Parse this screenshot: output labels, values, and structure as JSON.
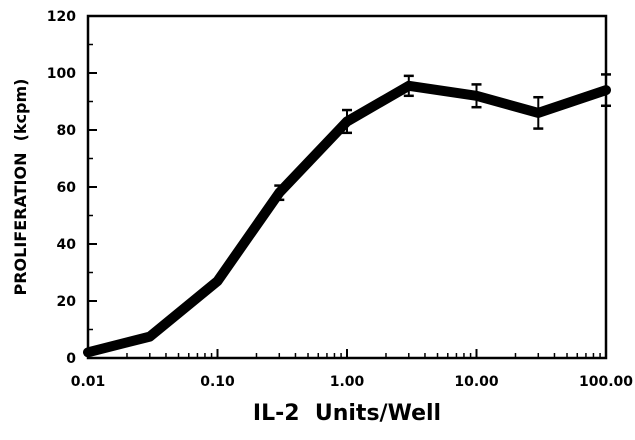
{
  "chart_data": {
    "type": "line",
    "title": "",
    "xlabel": "IL-2  Units/Well",
    "ylabel": "PROLIFERATION  (kcpm)",
    "x_scale": "log",
    "xlim": [
      0.01,
      100
    ],
    "ylim": [
      0,
      120
    ],
    "x_ticks": [
      {
        "value": 0.01,
        "label": "0.01"
      },
      {
        "value": 0.1,
        "label": "0.10"
      },
      {
        "value": 1,
        "label": "1.00"
      },
      {
        "value": 10,
        "label": "10.00"
      },
      {
        "value": 100,
        "label": "100.00"
      }
    ],
    "y_ticks": [
      {
        "value": 0,
        "label": "0"
      },
      {
        "value": 20,
        "label": "20"
      },
      {
        "value": 40,
        "label": "40"
      },
      {
        "value": 60,
        "label": "60"
      },
      {
        "value": 80,
        "label": "80"
      },
      {
        "value": 100,
        "label": "100"
      },
      {
        "value": 120,
        "label": "120"
      }
    ],
    "grid": false,
    "legend": "none",
    "line_color": "#000000",
    "series": [
      {
        "x": [
          0.01,
          0.03,
          0.1,
          0.3,
          1,
          3,
          10,
          30,
          100
        ],
        "y": [
          2,
          7.5,
          27,
          58,
          83,
          95.5,
          92,
          86,
          94
        ],
        "error": [
          0,
          0,
          0,
          2.5,
          4,
          3.5,
          4,
          5.5,
          5.5
        ]
      }
    ]
  }
}
